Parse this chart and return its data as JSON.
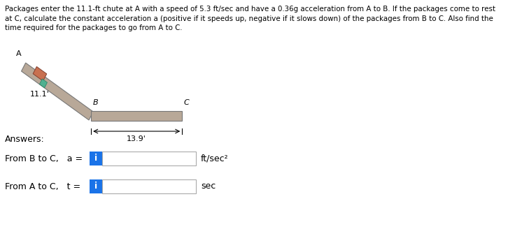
{
  "answers_label": "Answers:",
  "unit1": "ft/sec²",
  "unit2": "sec",
  "dim_AB": "11.1'",
  "dim_BC": "13.9'",
  "label_A": "A",
  "label_B": "B",
  "label_C": "C",
  "bg_color": "#ffffff",
  "text_color": "#000000",
  "blue_color": "#1a73e8",
  "chute_color": "#b8a898",
  "package_color": "#c87050",
  "teal_color": "#50b090",
  "row1_label": "From B to C,   a =",
  "row2_label": "From A to C,   t =",
  "problem_line1": "Packages enter the 11.1-ft chute at A with a speed of 5.3 ft/sec and have a 0.36g acceleration from A to B. If the packages come to rest",
  "problem_line2": "at C, calculate the constant acceleration a (positive if it speeds up, negative if it slows down) of the packages from B to C. Also find the",
  "problem_line3": "time required for the packages to go from A to C."
}
